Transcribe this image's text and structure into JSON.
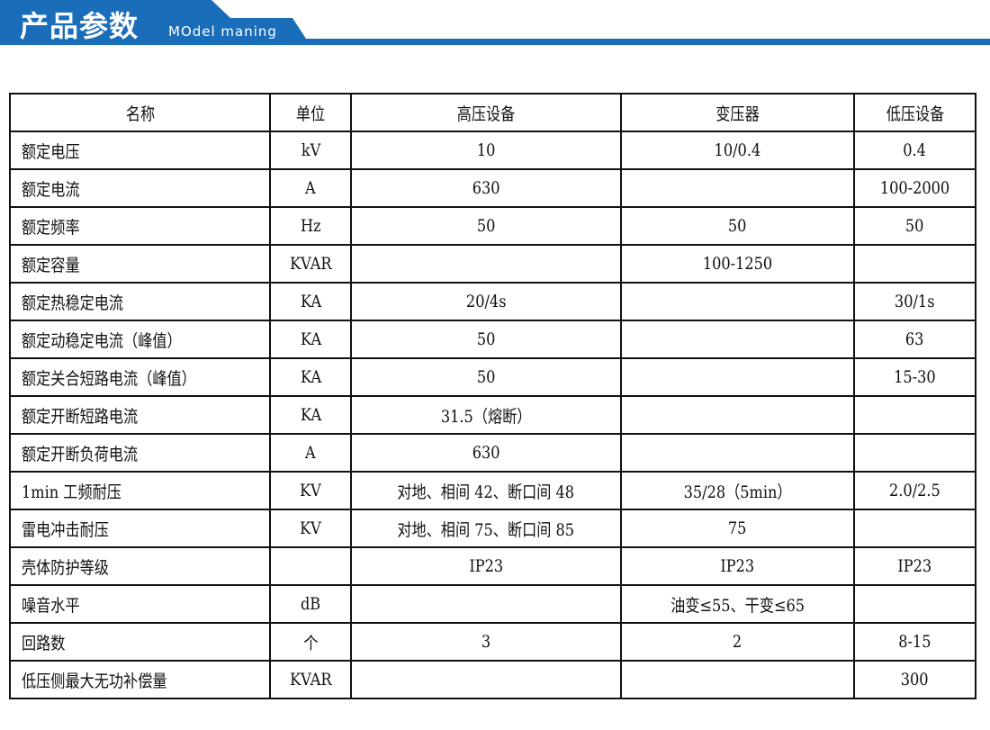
{
  "header": {
    "title": "产品参数",
    "subtitle": "MOdel maning",
    "color": "#1a6db8"
  },
  "table": {
    "columns": [
      "名称",
      "单位",
      "高压设备",
      "变压器",
      "低压设备"
    ],
    "rows": [
      [
        "额定电压",
        "kV",
        "10",
        "10/0.4",
        "0.4"
      ],
      [
        "额定电流",
        "A",
        "630",
        "",
        "100-2000"
      ],
      [
        "额定频率",
        "Hz",
        "50",
        "50",
        "50"
      ],
      [
        "额定容量",
        "KVAR",
        "",
        "100-1250",
        ""
      ],
      [
        "额定热稳定电流",
        "KA",
        "20/4s",
        "",
        "30/1s"
      ],
      [
        "额定动稳定电流（峰值）",
        "KA",
        "50",
        "",
        "63"
      ],
      [
        "额定关合短路电流（峰值）",
        "KA",
        "50",
        "",
        "15-30"
      ],
      [
        "额定开断短路电流",
        "KA",
        "31.5（熔断）",
        "",
        ""
      ],
      [
        "额定开断负荷电流",
        "A",
        "630",
        "",
        ""
      ],
      [
        "1min 工频耐压",
        "KV",
        "对地、相间 42、断口间 48",
        "35/28（5min）",
        "2.0/2.5"
      ],
      [
        "雷电冲击耐压",
        "KV",
        "对地、相间 75、断口间 85",
        "75",
        ""
      ],
      [
        "壳体防护等级",
        "",
        "IP23",
        "IP23",
        "IP23"
      ],
      [
        "噪音水平",
        "dB",
        "",
        "油变≤55、干变≤65",
        ""
      ],
      [
        "回路数",
        "个",
        "3",
        "2",
        "8-15"
      ],
      [
        "低压侧最大无功补偿量",
        "KVAR",
        "",
        "",
        "300"
      ]
    ]
  }
}
